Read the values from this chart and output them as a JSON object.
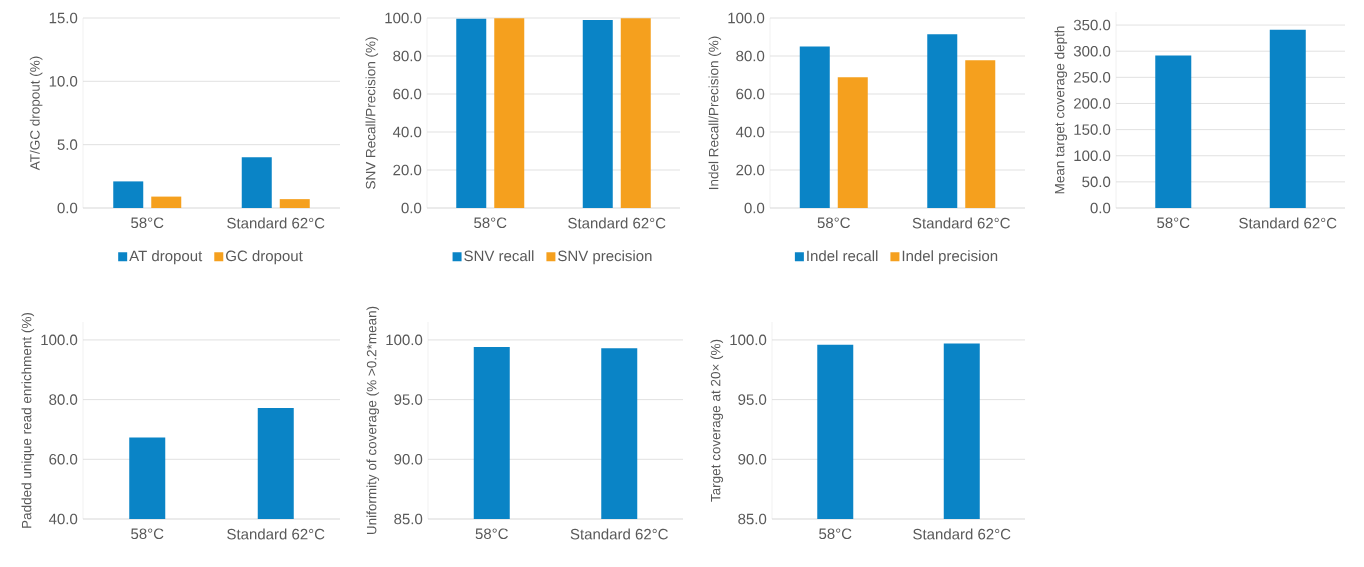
{
  "chart_data": [
    {
      "type": "bar",
      "categories": [
        "58°C",
        "Standard 62°C"
      ],
      "ylabel": "AT/GC dropout (%)",
      "ylim": [
        0,
        15
      ],
      "yticks": [
        {
          "value": 0,
          "label": "0.0"
        },
        {
          "value": 5,
          "label": "5.0"
        },
        {
          "value": 10,
          "label": "10.0"
        },
        {
          "value": 15,
          "label": "15.0"
        }
      ],
      "grid": "y",
      "legend": "bottom",
      "series": [
        {
          "name": "AT dropout",
          "color": "#0a84c6",
          "values": [
            2.1,
            4.0
          ]
        },
        {
          "name": "GC dropout",
          "color": "#f5a01e",
          "values": [
            0.9,
            0.7
          ]
        }
      ]
    },
    {
      "type": "bar",
      "categories": [
        "58°C",
        "Standard 62°C"
      ],
      "ylabel": "SNV Recall/Precision (%)",
      "ylim": [
        0,
        100
      ],
      "yticks": [
        {
          "value": 0,
          "label": "0.0"
        },
        {
          "value": 20,
          "label": "20.0"
        },
        {
          "value": 40,
          "label": "40.0"
        },
        {
          "value": 60,
          "label": "60.0"
        },
        {
          "value": 80,
          "label": "80.0"
        },
        {
          "value": 100,
          "label": "100.0"
        }
      ],
      "grid": "y",
      "legend": "bottom",
      "series": [
        {
          "name": "SNV recall",
          "color": "#0a84c6",
          "values": [
            99.6,
            99.0
          ]
        },
        {
          "name": "SNV precision",
          "color": "#f5a01e",
          "values": [
            99.9,
            99.9
          ]
        }
      ]
    },
    {
      "type": "bar",
      "categories": [
        "58°C",
        "Standard 62°C"
      ],
      "ylabel": "Indel Recall/Precision (%)",
      "ylim": [
        0,
        100
      ],
      "yticks": [
        {
          "value": 0,
          "label": "0.0"
        },
        {
          "value": 20,
          "label": "20.0"
        },
        {
          "value": 40,
          "label": "40.0"
        },
        {
          "value": 60,
          "label": "60.0"
        },
        {
          "value": 80,
          "label": "80.0"
        },
        {
          "value": 100,
          "label": "100.0"
        }
      ],
      "grid": "y",
      "legend": "bottom",
      "series": [
        {
          "name": "Indel recall",
          "color": "#0a84c6",
          "values": [
            85.0,
            91.4
          ]
        },
        {
          "name": "Indel precision",
          "color": "#f5a01e",
          "values": [
            68.8,
            77.7
          ]
        }
      ]
    },
    {
      "type": "bar",
      "categories": [
        "58°C",
        "Standard 62°C"
      ],
      "ylabel": "Mean target coverage depth",
      "ylim": [
        0,
        375
      ],
      "yticks": [
        {
          "value": 0,
          "label": "0.0"
        },
        {
          "value": 50,
          "label": "50.0"
        },
        {
          "value": 100,
          "label": "100.0"
        },
        {
          "value": 150,
          "label": "150.0"
        },
        {
          "value": 200,
          "label": "200.0"
        },
        {
          "value": 250,
          "label": "250.0"
        },
        {
          "value": 300,
          "label": "300.0"
        },
        {
          "value": 350,
          "label": "350.0"
        }
      ],
      "grid": "y",
      "series": [
        {
          "color": "#0a84c6",
          "values": [
            292,
            341
          ]
        }
      ]
    },
    {
      "type": "bar",
      "categories": [
        "58°C",
        "Standard 62°C"
      ],
      "ylabel": "Padded unique read enrichment (%)",
      "ylim": [
        40,
        106
      ],
      "yticks": [
        {
          "value": 40,
          "label": "40.0"
        },
        {
          "value": 60,
          "label": "60.0"
        },
        {
          "value": 80,
          "label": "80.0"
        },
        {
          "value": 100,
          "label": "100.0"
        }
      ],
      "grid": "y",
      "series": [
        {
          "color": "#0a84c6",
          "values": [
            67.3,
            77.2
          ]
        }
      ]
    },
    {
      "type": "bar",
      "categories": [
        "58°C",
        "Standard 62°C"
      ],
      "ylabel": "Uniformity of coverage (% >0.2*mean)",
      "ylim": [
        85,
        101.5
      ],
      "yticks": [
        {
          "value": 85,
          "label": "85.0"
        },
        {
          "value": 90,
          "label": "90.0"
        },
        {
          "value": 95,
          "label": "95.0"
        },
        {
          "value": 100,
          "label": "100.0"
        }
      ],
      "grid": "y",
      "series": [
        {
          "color": "#0a84c6",
          "values": [
            99.4,
            99.3
          ]
        }
      ]
    },
    {
      "type": "bar",
      "categories": [
        "58°C",
        "Standard 62°C"
      ],
      "ylabel": "Target coverage at 20× (%)",
      "ylim": [
        85,
        101.5
      ],
      "yticks": [
        {
          "value": 85,
          "label": "85.0"
        },
        {
          "value": 90,
          "label": "90.0"
        },
        {
          "value": 95,
          "label": "95.0"
        },
        {
          "value": 100,
          "label": "100.0"
        }
      ],
      "grid": "y",
      "series": [
        {
          "color": "#0a84c6",
          "values": [
            99.6,
            99.7
          ]
        }
      ]
    }
  ]
}
